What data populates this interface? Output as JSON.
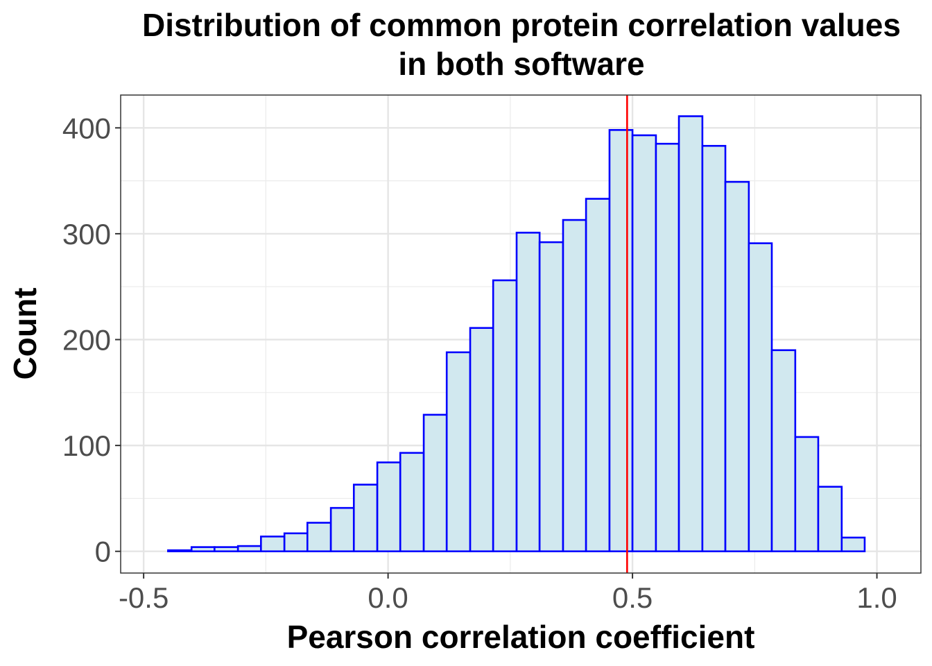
{
  "chart_data": {
    "type": "histogram",
    "title_lines": [
      "Distribution of common protein correlation values",
      "in both software"
    ],
    "xlabel": "Pearson correlation coefficient",
    "ylabel": "Count",
    "xlim": [
      -0.547,
      1.09
    ],
    "ylim": [
      -20.5,
      431
    ],
    "x_ticks": [
      {
        "value": -0.5,
        "label": "-0.5"
      },
      {
        "value": 0.0,
        "label": "0.0"
      },
      {
        "value": 0.5,
        "label": "0.5"
      },
      {
        "value": 1.0,
        "label": "1.0"
      }
    ],
    "y_ticks": [
      {
        "value": 0,
        "label": "0"
      },
      {
        "value": 100,
        "label": "100"
      },
      {
        "value": 200,
        "label": "200"
      },
      {
        "value": 300,
        "label": "300"
      },
      {
        "value": 400,
        "label": "400"
      }
    ],
    "bins": [
      {
        "start": -0.45,
        "end": -0.402,
        "count": 1
      },
      {
        "start": -0.402,
        "end": -0.355,
        "count": 4
      },
      {
        "start": -0.355,
        "end": -0.307,
        "count": 4
      },
      {
        "start": -0.307,
        "end": -0.26,
        "count": 5
      },
      {
        "start": -0.26,
        "end": -0.212,
        "count": 14
      },
      {
        "start": -0.212,
        "end": -0.165,
        "count": 17
      },
      {
        "start": -0.165,
        "end": -0.117,
        "count": 27
      },
      {
        "start": -0.117,
        "end": -0.07,
        "count": 41
      },
      {
        "start": -0.07,
        "end": -0.022,
        "count": 63
      },
      {
        "start": -0.022,
        "end": 0.025,
        "count": 84
      },
      {
        "start": 0.025,
        "end": 0.073,
        "count": 93
      },
      {
        "start": 0.073,
        "end": 0.12,
        "count": 129
      },
      {
        "start": 0.12,
        "end": 0.168,
        "count": 188
      },
      {
        "start": 0.168,
        "end": 0.215,
        "count": 211
      },
      {
        "start": 0.215,
        "end": 0.263,
        "count": 256
      },
      {
        "start": 0.263,
        "end": 0.31,
        "count": 301
      },
      {
        "start": 0.31,
        "end": 0.358,
        "count": 292
      },
      {
        "start": 0.358,
        "end": 0.405,
        "count": 313
      },
      {
        "start": 0.405,
        "end": 0.453,
        "count": 333
      },
      {
        "start": 0.453,
        "end": 0.5,
        "count": 398
      },
      {
        "start": 0.5,
        "end": 0.548,
        "count": 393
      },
      {
        "start": 0.548,
        "end": 0.595,
        "count": 385
      },
      {
        "start": 0.595,
        "end": 0.643,
        "count": 411
      },
      {
        "start": 0.643,
        "end": 0.69,
        "count": 383
      },
      {
        "start": 0.69,
        "end": 0.738,
        "count": 349
      },
      {
        "start": 0.738,
        "end": 0.785,
        "count": 291
      },
      {
        "start": 0.785,
        "end": 0.833,
        "count": 190
      },
      {
        "start": 0.833,
        "end": 0.88,
        "count": 108
      },
      {
        "start": 0.88,
        "end": 0.928,
        "count": 61
      },
      {
        "start": 0.928,
        "end": 0.975,
        "count": 13
      }
    ],
    "reference_line": {
      "x": 0.489,
      "color": "#ff0000"
    },
    "bar_fill": "#d1e8ef",
    "bar_stroke": "#0000ff",
    "grid": true
  }
}
